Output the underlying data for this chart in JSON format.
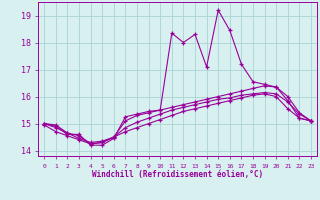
{
  "x": [
    0,
    1,
    2,
    3,
    4,
    5,
    6,
    7,
    8,
    9,
    10,
    11,
    12,
    13,
    14,
    15,
    16,
    17,
    18,
    19,
    20,
    21,
    22,
    23
  ],
  "line1": [
    15.0,
    14.9,
    14.6,
    14.6,
    14.2,
    14.2,
    14.45,
    15.25,
    15.35,
    15.45,
    15.5,
    18.35,
    18.0,
    18.3,
    17.1,
    19.2,
    18.45,
    17.2,
    16.55,
    16.45,
    16.35,
    15.85,
    15.2,
    15.1
  ],
  "line2": [
    15.0,
    14.95,
    14.65,
    14.55,
    14.25,
    14.3,
    14.5,
    15.1,
    15.3,
    15.4,
    15.5,
    15.6,
    15.7,
    15.8,
    15.9,
    16.0,
    16.1,
    16.2,
    16.3,
    16.4,
    16.35,
    16.0,
    15.4,
    15.1
  ],
  "line3": [
    14.95,
    14.7,
    14.55,
    14.4,
    14.25,
    14.3,
    14.5,
    14.7,
    14.85,
    15.0,
    15.15,
    15.3,
    15.45,
    15.55,
    15.65,
    15.75,
    15.85,
    15.95,
    16.05,
    16.1,
    16.0,
    15.55,
    15.2,
    15.1
  ],
  "line4": [
    15.0,
    14.85,
    14.65,
    14.45,
    14.3,
    14.35,
    14.5,
    14.85,
    15.05,
    15.2,
    15.35,
    15.5,
    15.6,
    15.7,
    15.8,
    15.9,
    15.95,
    16.05,
    16.1,
    16.15,
    16.1,
    15.8,
    15.35,
    15.1
  ],
  "color": "#990099",
  "bg_color": "#d8f0f0",
  "grid_color": "#aad4d4",
  "ylim": [
    13.8,
    19.5
  ],
  "yticks": [
    14,
    15,
    16,
    17,
    18,
    19
  ],
  "xlabel": "Windchill (Refroidissement éolien,°C)"
}
